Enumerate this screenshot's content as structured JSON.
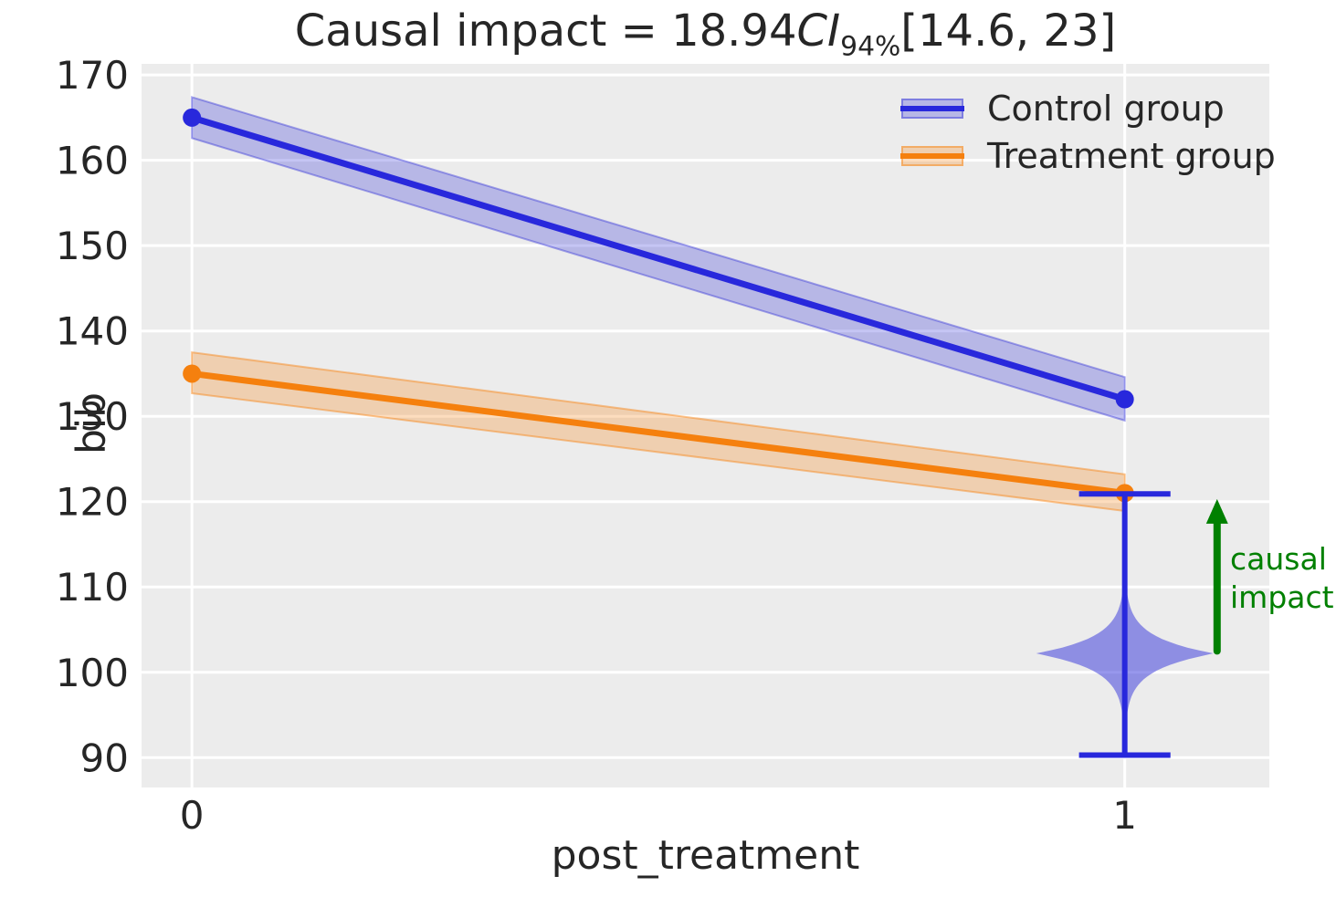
{
  "figure": {
    "background": "#ffffff"
  },
  "chart_data": {
    "type": "line",
    "title": {
      "prefix": "Causal impact = 18.94",
      "ci_label": "CI",
      "ci_sub": "94%",
      "interval": "[14.6, 23]"
    },
    "xlabel": "post_treatment",
    "ylabel": "bib",
    "axes_background": "#ececec",
    "grid_color": "#ffffff",
    "grid": true,
    "text_color": "#262626",
    "xlim": [
      -0.054,
      1.155
    ],
    "ylim": [
      86.5,
      171.3
    ],
    "x_ticks": [
      {
        "value": 0,
        "label": "0"
      },
      {
        "value": 1,
        "label": "1"
      }
    ],
    "y_ticks": [
      {
        "value": 90,
        "label": "90"
      },
      {
        "value": 100,
        "label": "100"
      },
      {
        "value": 110,
        "label": "110"
      },
      {
        "value": 120,
        "label": "120"
      },
      {
        "value": 130,
        "label": "130"
      },
      {
        "value": 140,
        "label": "140"
      },
      {
        "value": 150,
        "label": "150"
      },
      {
        "value": 160,
        "label": "160"
      },
      {
        "value": 170,
        "label": "170"
      }
    ],
    "legend_position": "upper right",
    "series": [
      {
        "name": "Control group",
        "color": "#2828dc",
        "band_fill": "rgba(40,40,215,0.27)",
        "band_edge": "rgba(40,40,215,0.40)",
        "x": [
          0,
          1
        ],
        "y": [
          165,
          132
        ],
        "band_lo": [
          162.6,
          129.5
        ],
        "band_hi": [
          167.4,
          134.6
        ],
        "line_width": 7,
        "marker_radius": 10
      },
      {
        "name": "Treatment group",
        "color": "#f5800e",
        "band_fill": "rgba(249,128,14,0.27)",
        "band_edge": "rgba(249,128,14,0.45)",
        "x": [
          0,
          1
        ],
        "y": [
          135,
          121
        ],
        "band_lo": [
          132.7,
          118.9
        ],
        "band_hi": [
          137.5,
          123.2
        ],
        "line_width": 7,
        "marker_radius": 10
      }
    ],
    "violin": {
      "x": 1,
      "peak": 102.2,
      "lo": 90.4,
      "hi": 120.8,
      "bandwidth": 1.95,
      "max_halfwidth": 0.096,
      "fill": "rgba(55,55,218,0.52)",
      "whisker_color": "#2828dc",
      "whisker_lo": 90.3,
      "whisker_hi": 120.9,
      "cap_halfwidth": 0.049,
      "whisker_width": 6
    },
    "arrow": {
      "x": 1.099,
      "y_from": 102.5,
      "y_to": 120.3,
      "color": "#008000",
      "label": "causal\nimpact"
    }
  }
}
